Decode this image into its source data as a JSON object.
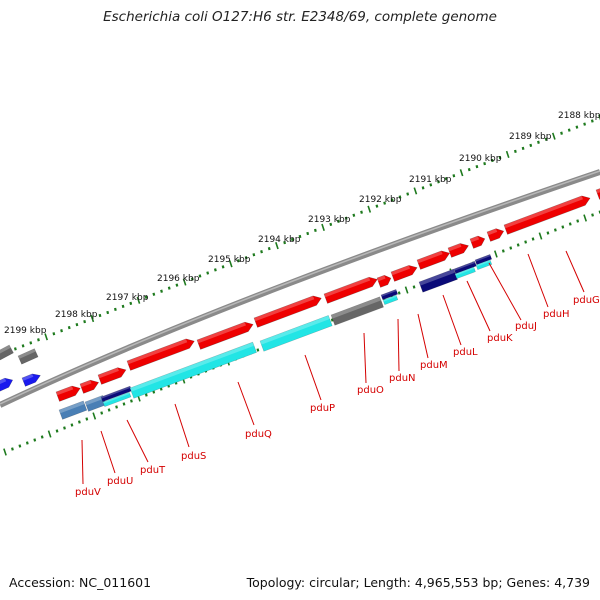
{
  "header": {
    "title": "Escherichia coli O127:H6 str. E2348/69, complete genome"
  },
  "footer": {
    "accession": "Accession: NC_011601",
    "summary": "Topology: circular; Length: 4,965,553 bp; Genes: 4,739"
  },
  "colors": {
    "backbone": "#808080",
    "tick": "#1e7a1e",
    "gene_red": "#ee0000",
    "gene_cyan": "#22e5e5",
    "gene_navy": "#0a0a78",
    "gene_steel": "#4a7fb5",
    "gene_gray": "#666666",
    "gene_blue": "#1a1aee",
    "label": "#d40000"
  },
  "tick_labels": [
    "2188 kbp",
    "2189 kbp",
    "2190 kbp",
    "2191 kbp",
    "2192 kbp",
    "2193 kbp",
    "2194 kbp",
    "2195 kbp",
    "2196 kbp",
    "2197 kbp",
    "2198 kbp",
    "2199 kbp"
  ],
  "gene_labels": [
    "pduG",
    "pduH",
    "pduJ",
    "pduK",
    "pduL",
    "pduM",
    "pduN",
    "pduO",
    "pduP",
    "pduQ",
    "pduS",
    "pduT",
    "pduU",
    "pduV"
  ]
}
